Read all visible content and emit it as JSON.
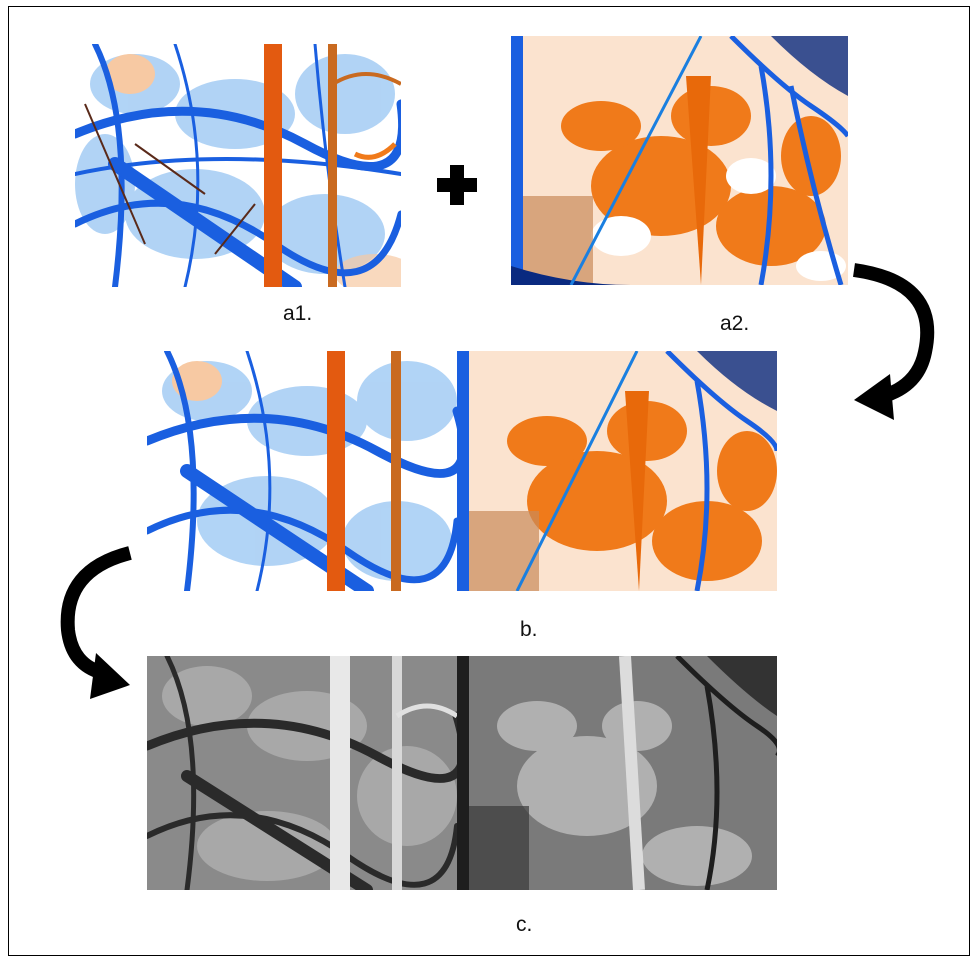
{
  "labels": {
    "a1": "a1.",
    "a2": "a2.",
    "b": "b.",
    "c": "c."
  },
  "icons": {
    "combine": "plus-icon",
    "arrow_right": "curved-arrow-down-left-icon",
    "arrow_left": "curved-arrow-down-right-icon"
  },
  "colors": {
    "blue": "#1a5fe0",
    "orange": "#f07a1a",
    "light_blue": "#a9cff5",
    "peach": "#f7c9a3",
    "gray_dark": "#3a3a3a",
    "gray_light": "#c8c8c8"
  }
}
